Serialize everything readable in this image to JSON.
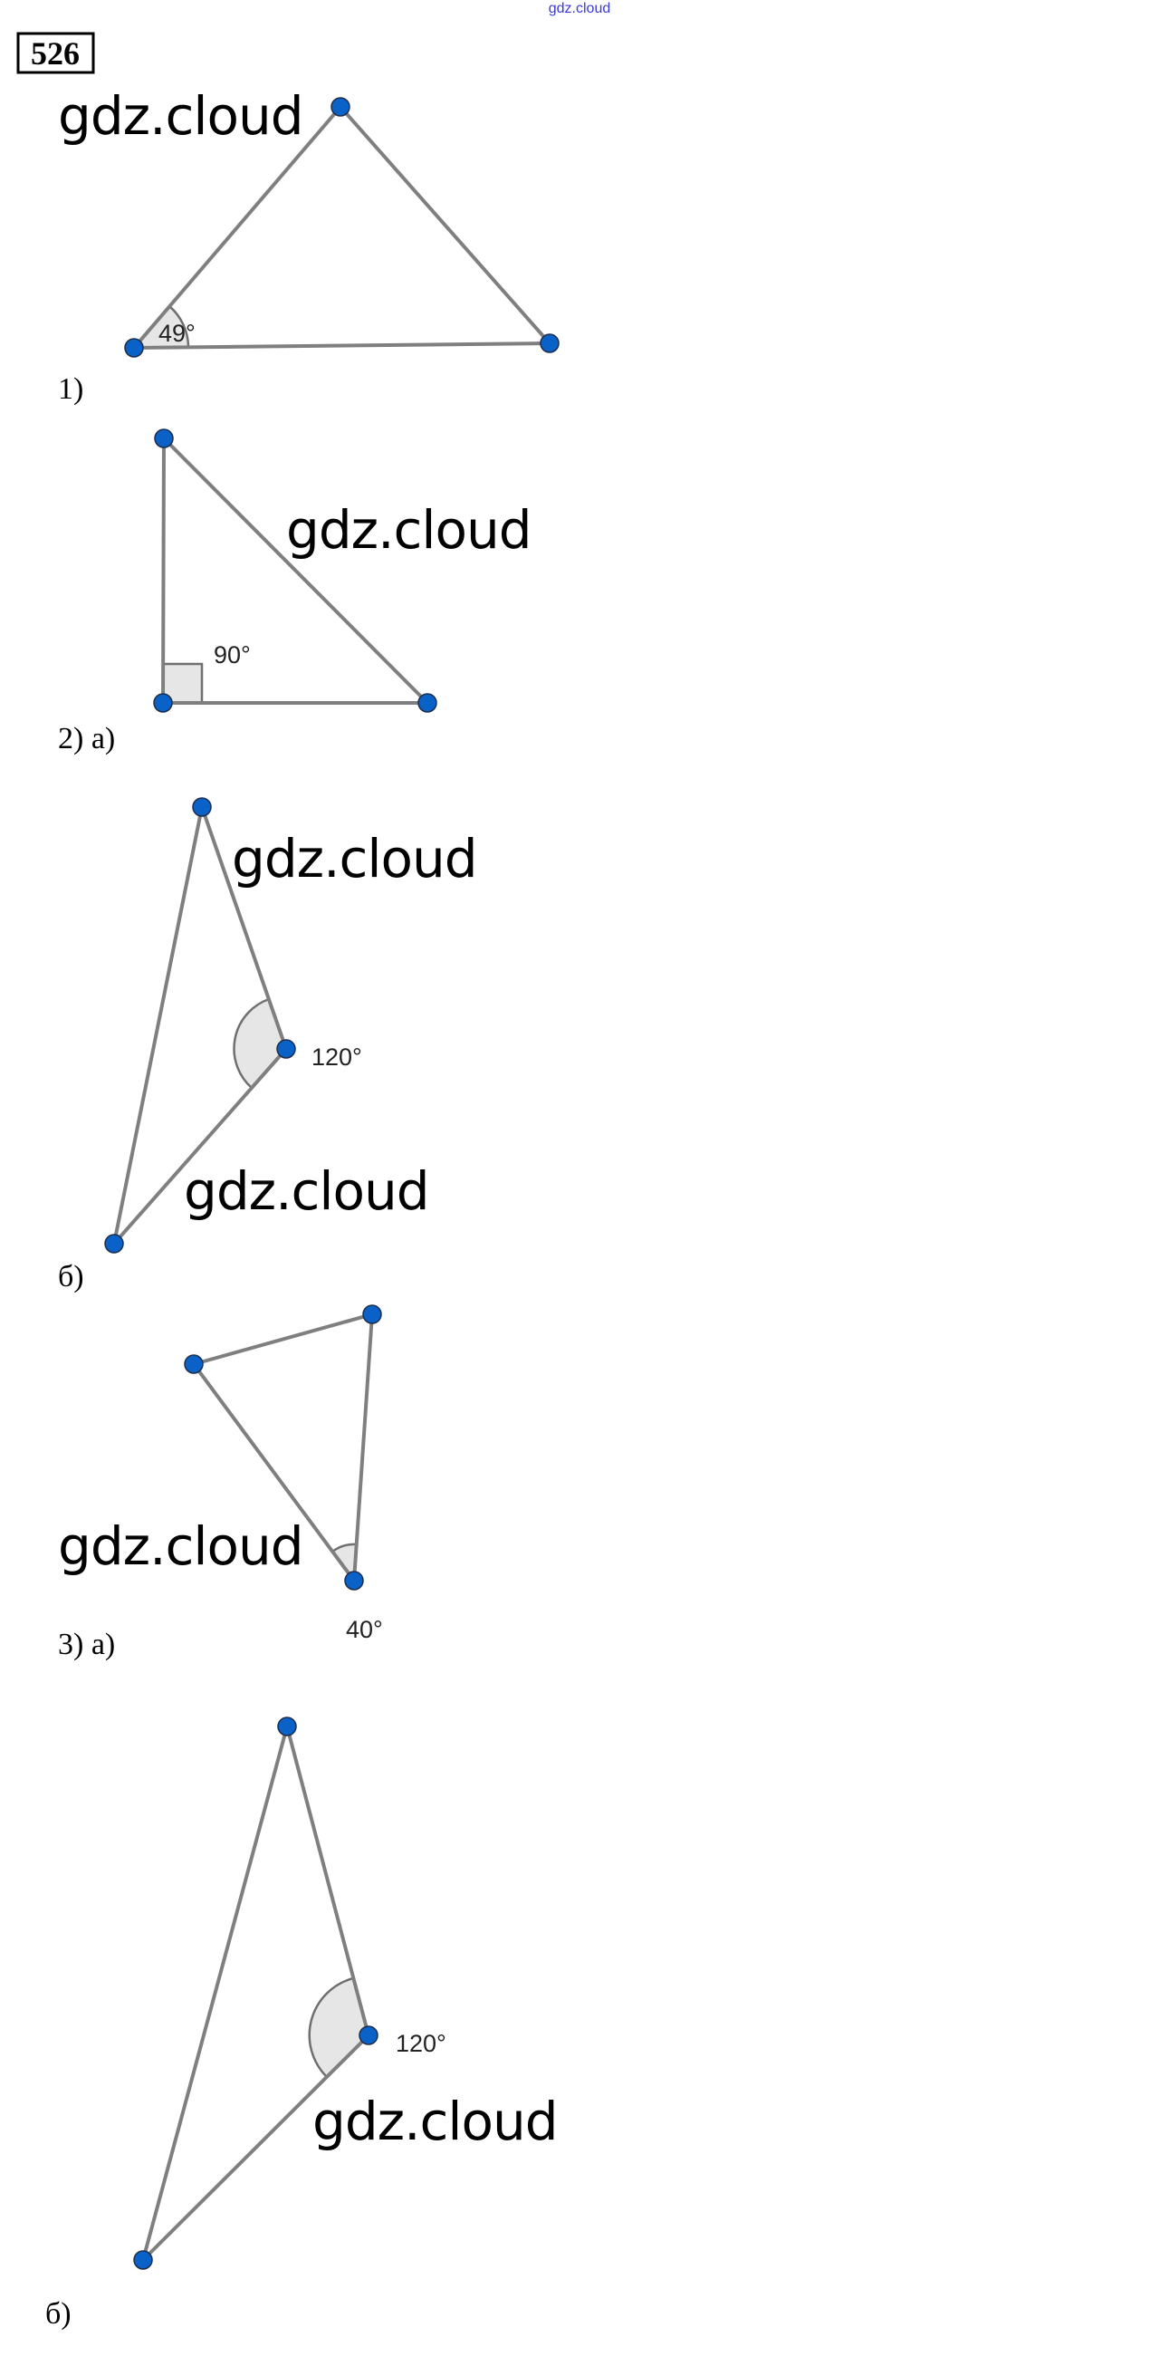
{
  "header": {
    "watermark": "gdz.cloud",
    "watermark_color": "#3a3ad8"
  },
  "problem_number": "526",
  "colors": {
    "vertex": "#0a62c8",
    "edge": "#7f7f7f",
    "angle_fill": "#e6e6e6"
  },
  "figures": [
    {
      "label": "1)",
      "angle": "49°",
      "watermark": "gdz.cloud"
    },
    {
      "label": "2) а)",
      "angle": "90°",
      "watermark": "gdz.cloud"
    },
    {
      "label": "б)",
      "angle": "120°",
      "watermarks": [
        "gdz.cloud",
        "gdz.cloud"
      ]
    },
    {
      "label": "3) а)",
      "angle": "40°",
      "watermark": "gdz.cloud"
    },
    {
      "label": "б)",
      "angle": "120°",
      "watermark": "gdz.cloud"
    }
  ]
}
